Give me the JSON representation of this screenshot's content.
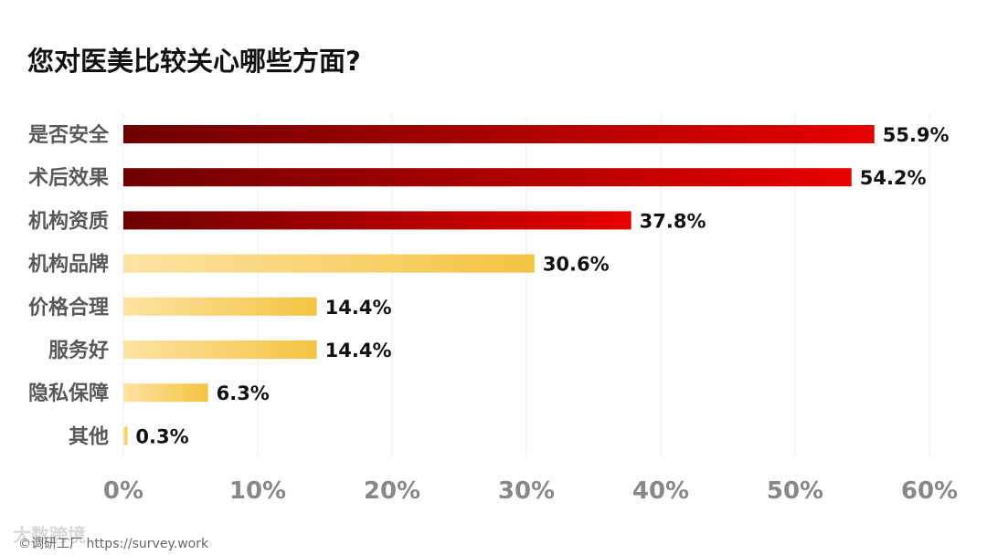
{
  "chart_data": {
    "type": "bar",
    "orientation": "horizontal",
    "title": "您对医美比较关心哪些方面?",
    "categories": [
      "是否安全",
      "术后效果",
      "机构资质",
      "机构品牌",
      "价格合理",
      "服务好",
      "隐私保障",
      "其他"
    ],
    "values": [
      55.9,
      54.2,
      37.8,
      30.6,
      14.4,
      14.4,
      6.3,
      0.3
    ],
    "value_labels": [
      "55.9%",
      "54.2%",
      "37.8%",
      "30.6%",
      "14.4%",
      "14.4%",
      "6.3%",
      "0.3%"
    ],
    "x_ticks": [
      "0%",
      "10%",
      "20%",
      "30%",
      "40%",
      "50%",
      "60%"
    ],
    "xlim": [
      0,
      60
    ],
    "grid": "vertical",
    "colors": {
      "red_start": "#6e0000",
      "red_end": "#e60000",
      "gold_start": "#fde3a3",
      "gold_end": "#f4c342",
      "gridline": "#eeeeee",
      "tick_text": "#888888",
      "label_text": "#595959"
    },
    "red_bar_count": 3
  },
  "footer": {
    "credit": "©调研工厂 https://survey.work",
    "watermark": "大数跨境"
  }
}
